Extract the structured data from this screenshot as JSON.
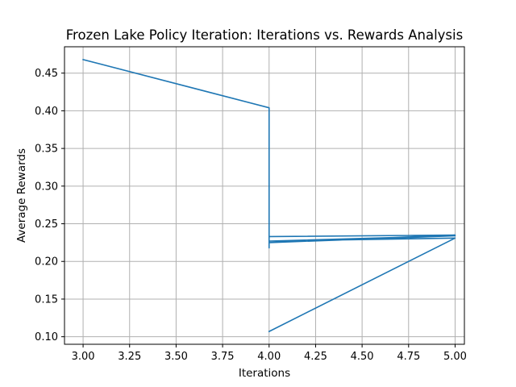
{
  "chart_data": {
    "type": "line",
    "title": "Frozen Lake Policy Iteration: Iterations vs. Rewards Analysis",
    "xlabel": "Iterations",
    "ylabel": "Average Rewards",
    "xlim": [
      2.9,
      5.05
    ],
    "ylim": [
      0.09,
      0.485
    ],
    "xticks": [
      "3.00",
      "3.25",
      "3.50",
      "3.75",
      "4.00",
      "4.25",
      "4.50",
      "4.75",
      "5.00"
    ],
    "yticks": [
      "0.10",
      "0.15",
      "0.20",
      "0.25",
      "0.30",
      "0.35",
      "0.40",
      "0.45"
    ],
    "grid": true,
    "series": [
      {
        "color": "#1f77b4",
        "x": [
          3,
          4,
          4,
          4,
          5,
          4,
          5,
          4,
          5,
          4
        ],
        "y": [
          0.468,
          0.404,
          0.218,
          0.233,
          0.235,
          0.225,
          0.234,
          0.227,
          0.231,
          0.107
        ]
      }
    ]
  }
}
